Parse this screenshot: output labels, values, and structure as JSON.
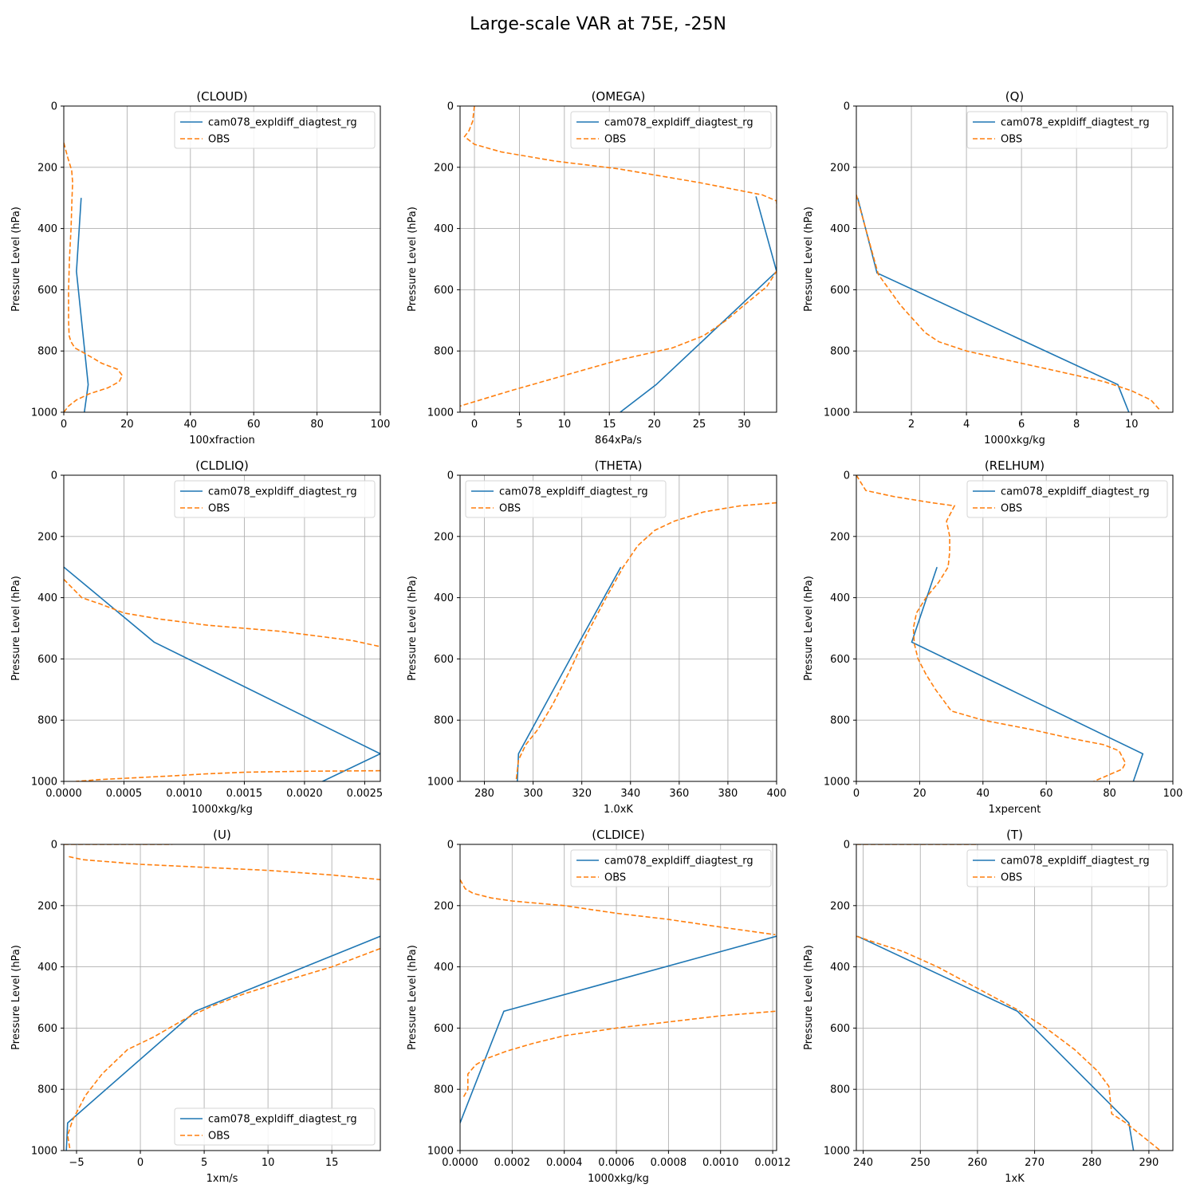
{
  "figure": {
    "title": "Large-scale VAR at 75E, -25N"
  },
  "colors": {
    "model": "#1f77b4",
    "obs": "#ff7f0e",
    "grid": "#b0b0b0",
    "axis": "#000000"
  },
  "chart_data": [
    {
      "type": "line",
      "title": "(CLOUD)",
      "xlabel": "100xfraction",
      "ylabel": "Pressure Level (hPa)",
      "xlim": [
        0,
        100
      ],
      "ylim": [
        1000,
        0
      ],
      "grid": true,
      "legend": "upper-right",
      "xticks": [
        0,
        20,
        40,
        60,
        80,
        100
      ],
      "xtick_labels": [
        "0",
        "20",
        "40",
        "60",
        "80",
        "100"
      ],
      "yticks": [
        0,
        200,
        400,
        600,
        800,
        1000
      ],
      "ytick_labels": [
        "0",
        "200",
        "400",
        "600",
        "800",
        "1000"
      ],
      "series": [
        {
          "name": "cam078_expldiff_diagtest_rg",
          "style": "solid",
          "x": [
            5.5,
            4,
            7.7,
            6.5
          ],
          "y": [
            300,
            540,
            910,
            1000
          ]
        },
        {
          "name": "OBS",
          "style": "dashed",
          "x": [
            0,
            1.3,
            2.5,
            2.8,
            2.6,
            2.3,
            1.8,
            1.5,
            1.5,
            1.7,
            2.3,
            3.5,
            7,
            12,
            17,
            18.5,
            17.5,
            14,
            8,
            4,
            1.5,
            0
          ],
          "y": [
            120,
            170,
            210,
            250,
            300,
            400,
            500,
            600,
            700,
            750,
            770,
            790,
            810,
            840,
            860,
            880,
            900,
            920,
            940,
            960,
            980,
            1000
          ]
        }
      ]
    },
    {
      "type": "line",
      "title": "(OMEGA)",
      "xlabel": "864xPa/s",
      "ylabel": "Pressure Level (hPa)",
      "xlim": [
        -1.6,
        33.6
      ],
      "ylim": [
        1000,
        0
      ],
      "grid": true,
      "legend": "upper-right",
      "xticks": [
        0,
        5,
        10,
        15,
        20,
        25,
        30
      ],
      "xtick_labels": [
        "0",
        "5",
        "10",
        "15",
        "20",
        "25",
        "30"
      ],
      "yticks": [
        0,
        200,
        400,
        600,
        800,
        1000
      ],
      "ytick_labels": [
        "0",
        "200",
        "400",
        "600",
        "800",
        "1000"
      ],
      "series": [
        {
          "name": "cam078_expldiff_diagtest_rg",
          "style": "solid",
          "x": [
            31.3,
            33.6,
            20.2,
            16.2
          ],
          "y": [
            295,
            540,
            910,
            1000
          ]
        },
        {
          "name": "OBS",
          "style": "dashed",
          "x": [
            0,
            -0.2,
            -0.6,
            -1.1,
            0,
            3,
            9,
            16,
            21,
            25,
            28.5,
            32,
            33.6,
            33.8,
            32.5,
            30,
            28,
            25.5,
            22,
            16,
            10,
            4,
            -1.6
          ],
          "y": [
            0,
            50,
            80,
            100,
            125,
            150,
            180,
            205,
            230,
            250,
            270,
            290,
            310,
            530,
            590,
            650,
            700,
            750,
            790,
            830,
            880,
            930,
            980
          ]
        }
      ]
    },
    {
      "type": "line",
      "title": "(Q)",
      "xlabel": "1000xkg/kg",
      "ylabel": "Pressure Level (hPa)",
      "xlim": [
        0,
        11.5
      ],
      "ylim": [
        1000,
        0
      ],
      "grid": true,
      "legend": "upper-right",
      "xticks": [
        2,
        4,
        6,
        8,
        10
      ],
      "xtick_labels": [
        "2",
        "4",
        "6",
        "8",
        "10"
      ],
      "yticks": [
        0,
        200,
        400,
        600,
        800,
        1000
      ],
      "ytick_labels": [
        "0",
        "200",
        "400",
        "600",
        "800",
        "1000"
      ],
      "series": [
        {
          "name": "cam078_expldiff_diagtest_rg",
          "style": "solid",
          "x": [
            0.05,
            0.75,
            9.5,
            9.9
          ],
          "y": [
            300,
            545,
            910,
            1000
          ]
        },
        {
          "name": "OBS",
          "style": "dashed",
          "x": [
            0,
            0.4,
            0.8,
            1.2,
            1.6,
            2,
            2.5,
            3,
            4,
            5,
            6,
            7,
            8,
            9,
            10,
            10.7,
            11
          ],
          "y": [
            290,
            420,
            550,
            600,
            650,
            690,
            740,
            770,
            800,
            820,
            840,
            860,
            880,
            900,
            930,
            960,
            990
          ]
        }
      ]
    },
    {
      "type": "line",
      "title": "(CLDLIQ)",
      "xlabel": "1000xkg/kg",
      "ylabel": "Pressure Level (hPa)",
      "xlim": [
        0,
        0.00263
      ],
      "ylim": [
        1000,
        0
      ],
      "grid": true,
      "legend": "upper-right",
      "xticks": [
        0,
        0.0005,
        0.001,
        0.0015,
        0.002,
        0.0025
      ],
      "xtick_labels": [
        "0.0000",
        "0.0005",
        "0.0010",
        "0.0015",
        "0.0020",
        "0.0025"
      ],
      "yticks": [
        0,
        200,
        400,
        600,
        800,
        1000
      ],
      "ytick_labels": [
        "0",
        "200",
        "400",
        "600",
        "800",
        "1000"
      ],
      "series": [
        {
          "name": "cam078_expldiff_diagtest_rg",
          "style": "solid",
          "x": [
            0,
            0.00075,
            0.00263,
            0.00215
          ],
          "y": [
            300,
            545,
            910,
            1000
          ]
        },
        {
          "name": "OBS",
          "style": "dashed",
          "x": [
            0,
            0.0001,
            0.00015,
            0.0003,
            0.0005,
            0.0008,
            0.0012,
            0.0018,
            0.0024,
            0.00263
          ],
          "y": [
            340,
            380,
            400,
            420,
            450,
            470,
            490,
            510,
            540,
            560
          ]
        },
        {
          "name": "OBS",
          "style": "dashed",
          "x": [
            0.00263,
            0.002,
            0.0015,
            0.0012,
            0.0009,
            0.0006,
            0.0003,
            0.0001
          ],
          "y": [
            965,
            967,
            970,
            975,
            982,
            988,
            994,
            1000
          ]
        }
      ]
    },
    {
      "type": "line",
      "title": "(THETA)",
      "xlabel": "1.0xK",
      "ylabel": "Pressure Level (hPa)",
      "xlim": [
        270,
        400
      ],
      "ylim": [
        1000,
        0
      ],
      "grid": true,
      "legend": "upper-left",
      "xticks": [
        280,
        300,
        320,
        340,
        360,
        380,
        400
      ],
      "xtick_labels": [
        "280",
        "300",
        "320",
        "340",
        "360",
        "380",
        "400"
      ],
      "yticks": [
        0,
        200,
        400,
        600,
        800,
        1000
      ],
      "ytick_labels": [
        "0",
        "200",
        "400",
        "600",
        "800",
        "1000"
      ],
      "series": [
        {
          "name": "cam078_expldiff_diagtest_rg",
          "style": "solid",
          "x": [
            336,
            319,
            294,
            293.5
          ],
          "y": [
            300,
            545,
            910,
            1000
          ]
        },
        {
          "name": "OBS",
          "style": "dashed",
          "x": [
            400,
            385,
            370,
            358,
            350,
            343,
            337,
            330,
            322,
            315,
            308,
            302,
            297,
            294,
            293
          ],
          "y": [
            90,
            100,
            120,
            150,
            180,
            230,
            300,
            400,
            520,
            640,
            750,
            830,
            880,
            930,
            1000
          ]
        }
      ]
    },
    {
      "type": "line",
      "title": "(RELHUM)",
      "xlabel": "1xpercent",
      "ylabel": "Pressure Level (hPa)",
      "xlim": [
        0,
        100
      ],
      "ylim": [
        1000,
        0
      ],
      "grid": true,
      "legend": "upper-right",
      "xticks": [
        0,
        20,
        40,
        60,
        80,
        100
      ],
      "xtick_labels": [
        "0",
        "20",
        "40",
        "60",
        "80",
        "100"
      ],
      "yticks": [
        0,
        200,
        400,
        600,
        800,
        1000
      ],
      "ytick_labels": [
        "0",
        "200",
        "400",
        "600",
        "800",
        "1000"
      ],
      "series": [
        {
          "name": "cam078_expldiff_diagtest_rg",
          "style": "solid",
          "x": [
            25.5,
            17.5,
            90.5,
            87.5
          ],
          "y": [
            300,
            545,
            910,
            1000
          ]
        },
        {
          "name": "OBS",
          "style": "dashed",
          "x": [
            0,
            3,
            12,
            24,
            31,
            30,
            28.5,
            29.5,
            29.5,
            29,
            26,
            22,
            19,
            18,
            18.3,
            19.5,
            22,
            25,
            30,
            40,
            55,
            68,
            78,
            83,
            85,
            84,
            75
          ],
          "y": [
            0,
            50,
            70,
            90,
            100,
            120,
            150,
            200,
            250,
            300,
            350,
            400,
            450,
            500,
            550,
            600,
            650,
            700,
            770,
            800,
            830,
            860,
            880,
            900,
            940,
            960,
            1000
          ]
        }
      ]
    },
    {
      "type": "line",
      "title": "(U)",
      "xlabel": "1xm/s",
      "ylabel": "Pressure Level (hPa)",
      "xlim": [
        -6,
        18.8
      ],
      "ylim": [
        1000,
        0
      ],
      "grid": true,
      "legend": "lower-right",
      "xticks": [
        -5,
        0,
        5,
        10,
        15
      ],
      "xtick_labels": [
        "−5",
        "0",
        "5",
        "10",
        "15"
      ],
      "yticks": [
        0,
        200,
        400,
        600,
        800,
        1000
      ],
      "ytick_labels": [
        "0",
        "200",
        "400",
        "600",
        "800",
        "1000"
      ],
      "series": [
        {
          "name": "cam078_expldiff_diagtest_rg",
          "style": "solid",
          "x": [
            18.8,
            4.3,
            -5.7,
            -5.8
          ],
          "y": [
            300,
            545,
            910,
            1000
          ]
        },
        {
          "name": "OBS",
          "style": "dashed",
          "x": [
            -6,
            2.5
          ],
          "y": [
            0,
            0
          ]
        },
        {
          "name": "OBS",
          "style": "dashed",
          "x": [
            -5.6,
            -4.5,
            0,
            5,
            10,
            15,
            18.8
          ],
          "y": [
            40,
            50,
            65,
            75,
            85,
            100,
            115
          ]
        },
        {
          "name": "OBS",
          "style": "dashed",
          "x": [
            18.8,
            15,
            11,
            8,
            5.5,
            3.5,
            1,
            -1,
            -3,
            -4.3,
            -5.3,
            -5.7,
            -5.5
          ],
          "y": [
            340,
            400,
            450,
            490,
            530,
            570,
            630,
            670,
            750,
            820,
            900,
            950,
            1000
          ]
        }
      ]
    },
    {
      "type": "line",
      "title": "(CLDICE)",
      "xlabel": "1000xkg/kg",
      "ylabel": "Pressure Level (hPa)",
      "xlim": [
        0,
        0.001215
      ],
      "ylim": [
        1000,
        0
      ],
      "grid": true,
      "legend": "upper-right",
      "xticks": [
        0,
        0.0002,
        0.0004,
        0.0006,
        0.0008,
        0.001,
        0.0012
      ],
      "xtick_labels": [
        "0.0000",
        "0.0002",
        "0.0004",
        "0.0006",
        "0.0008",
        "0.0010",
        "0.0012"
      ],
      "yticks": [
        0,
        200,
        400,
        600,
        800,
        1000
      ],
      "ytick_labels": [
        "0",
        "200",
        "400",
        "600",
        "800",
        "1000"
      ],
      "series": [
        {
          "name": "cam078_expldiff_diagtest_rg",
          "style": "solid",
          "x": [
            0.001215,
            0.000168,
            0
          ],
          "y": [
            300,
            545,
            910
          ]
        },
        {
          "name": "OBS",
          "style": "dashed",
          "x": [
            0,
            2e-05,
            5e-05,
            0.00012,
            0.0002,
            0.0004,
            0.0006,
            0.0008,
            0.001,
            0.00121
          ],
          "y": [
            115,
            145,
            160,
            175,
            185,
            200,
            225,
            245,
            270,
            295
          ]
        },
        {
          "name": "OBS",
          "style": "dashed",
          "x": [
            0.00121,
            0.001,
            0.0008,
            0.0006,
            0.0004,
            0.00028,
            0.00018,
            0.0001,
            6e-05,
            3e-05,
            3e-05,
            1e-05
          ],
          "y": [
            545,
            560,
            580,
            600,
            625,
            650,
            675,
            700,
            720,
            750,
            800,
            830
          ]
        }
      ]
    },
    {
      "type": "line",
      "title": "(T)",
      "xlabel": "1xK",
      "ylabel": "Pressure Level (hPa)",
      "xlim": [
        238.8,
        294.2
      ],
      "ylim": [
        1000,
        0
      ],
      "grid": true,
      "legend": "upper-right",
      "xticks": [
        240,
        250,
        260,
        270,
        280,
        290
      ],
      "xtick_labels": [
        "240",
        "250",
        "260",
        "270",
        "280",
        "290"
      ],
      "yticks": [
        0,
        200,
        400,
        600,
        800,
        1000
      ],
      "ytick_labels": [
        "0",
        "200",
        "400",
        "600",
        "800",
        "1000"
      ],
      "series": [
        {
          "name": "cam078_expldiff_diagtest_rg",
          "style": "solid",
          "x": [
            239,
            267,
            286.5,
            287.3
          ],
          "y": [
            300,
            545,
            910,
            1000
          ]
        },
        {
          "name": "OBS",
          "style": "dashed",
          "x": [
            238.8,
            260
          ],
          "y": [
            0,
            0
          ]
        },
        {
          "name": "OBS",
          "style": "dashed",
          "x": [
            238.8,
            242,
            247,
            253,
            260,
            267,
            272,
            277,
            281,
            283,
            283.5,
            286,
            288,
            290,
            292
          ],
          "y": [
            300,
            320,
            350,
            400,
            470,
            540,
            600,
            670,
            740,
            790,
            880,
            910,
            940,
            970,
            1000
          ]
        }
      ]
    }
  ]
}
